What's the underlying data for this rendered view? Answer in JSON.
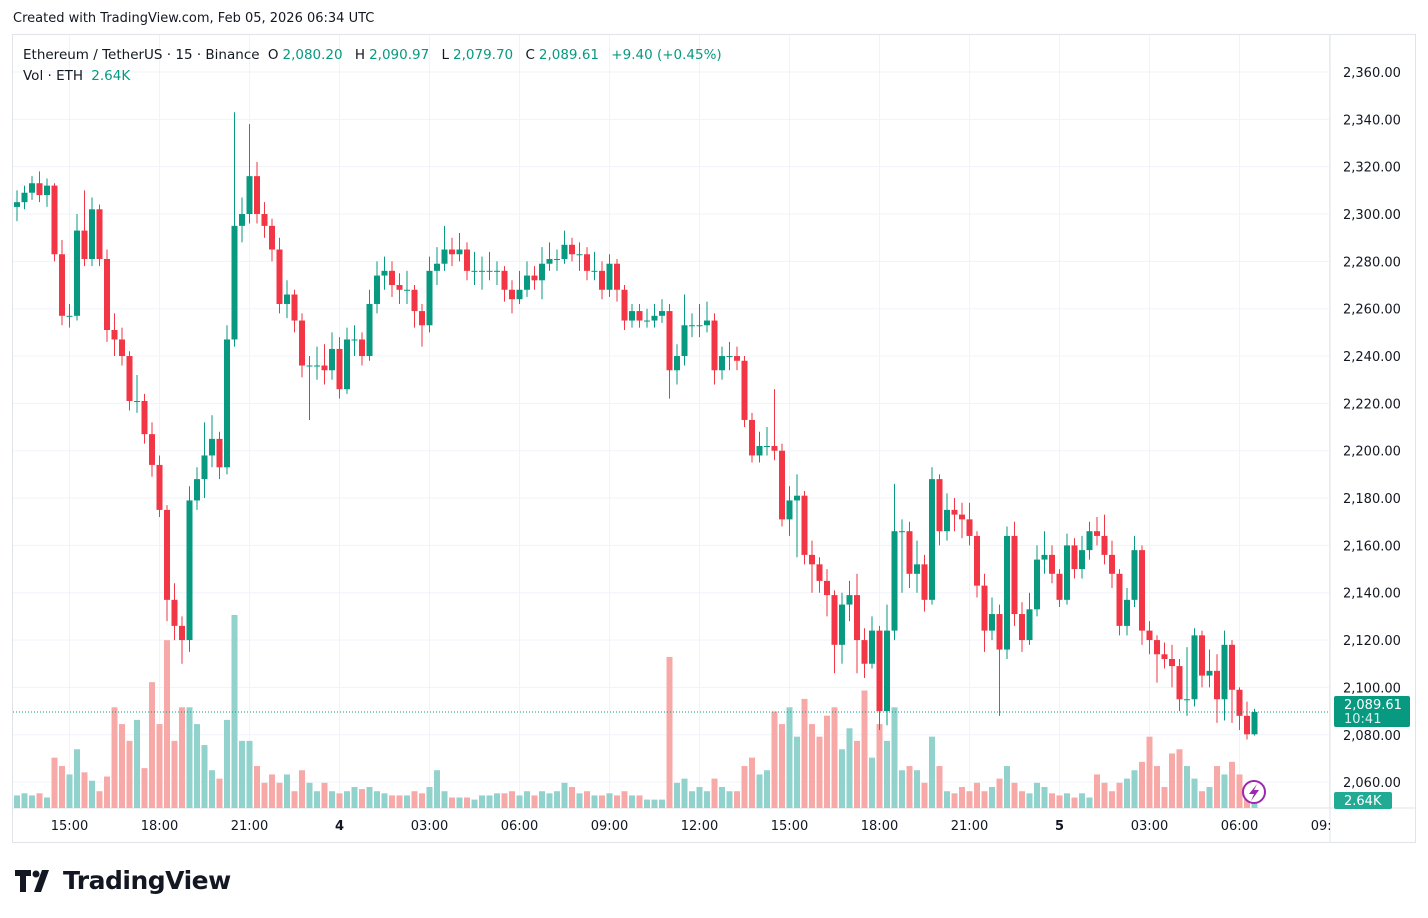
{
  "watermark": "Created with TradingView.com, Feb 05, 2026 06:34 UTC",
  "legend": {
    "symbol": "Ethereum / TetherUS · 15 · Binance",
    "o_label": "O",
    "o": "2,080.20",
    "h_label": "H",
    "h": "2,090.97",
    "l_label": "L",
    "l": "2,079.70",
    "c_label": "C",
    "c": "2,089.61",
    "change": "+9.40 (+0.45%)",
    "vol_label": "Vol · ETH",
    "vol": "2.64K"
  },
  "price_label": {
    "price": "2,089.61",
    "countdown": "10:41"
  },
  "volume_label": "2.64K",
  "logo": "TradingView",
  "colors": {
    "up": "#089981",
    "down": "#f23645",
    "vol_up": "#92d2cc",
    "vol_down": "#f7a9a7",
    "accent": "#9c27b0"
  },
  "chart_data": {
    "type": "candlestick",
    "title": "Ethereum / TetherUS · 15 · Binance",
    "interval": "15",
    "ylim": [
      2050,
      2372
    ],
    "grid": true,
    "price_ticks": [
      "2,060.00",
      "2,080.00",
      "2,100.00",
      "2,120.00",
      "2,140.00",
      "2,160.00",
      "2,180.00",
      "2,200.00",
      "2,220.00",
      "2,240.00",
      "2,260.00",
      "2,280.00",
      "2,300.00",
      "2,320.00",
      "2,340.00",
      "2,360.00"
    ],
    "price_tick_values": [
      2060,
      2080,
      2100,
      2120,
      2140,
      2160,
      2180,
      2200,
      2220,
      2240,
      2260,
      2280,
      2300,
      2320,
      2340,
      2360
    ],
    "time_ticks": [
      {
        "label": "15:00",
        "bar": 7
      },
      {
        "label": "18:00",
        "bar": 19
      },
      {
        "label": "21:00",
        "bar": 31
      },
      {
        "label": "4",
        "bar": 43
      },
      {
        "label": "03:00",
        "bar": 55
      },
      {
        "label": "06:00",
        "bar": 67
      },
      {
        "label": "09:00",
        "bar": 79
      },
      {
        "label": "12:00",
        "bar": 91
      },
      {
        "label": "15:00",
        "bar": 103
      },
      {
        "label": "18:00",
        "bar": 115
      },
      {
        "label": "21:00",
        "bar": 127
      },
      {
        "label": "5",
        "bar": 139
      },
      {
        "label": "03:00",
        "bar": 151
      },
      {
        "label": "06:00",
        "bar": 163
      },
      {
        "label": "09:00",
        "bar": 175
      }
    ],
    "candle_fields": [
      "open",
      "high",
      "low",
      "close",
      "volume_k"
    ],
    "candles": [
      [
        2303,
        2310,
        2297,
        2305,
        3
      ],
      [
        2305,
        2312,
        2302,
        2309,
        3.5
      ],
      [
        2309,
        2316,
        2306,
        2313,
        3
      ],
      [
        2313,
        2318,
        2305,
        2308,
        3.5
      ],
      [
        2308,
        2315,
        2303,
        2312,
        2.5
      ],
      [
        2312,
        2313,
        2280,
        2283,
        12
      ],
      [
        2283,
        2289,
        2253,
        2257,
        10
      ],
      [
        2257,
        2262,
        2252,
        2257,
        8
      ],
      [
        2257,
        2300,
        2255,
        2293,
        14
      ],
      [
        2293,
        2310,
        2278,
        2281,
        8.5
      ],
      [
        2281,
        2307,
        2278,
        2302,
        6.5
      ],
      [
        2302,
        2304,
        2278,
        2281,
        4
      ],
      [
        2281,
        2285,
        2246,
        2251,
        7.5
      ],
      [
        2251,
        2258,
        2240,
        2247,
        24
      ],
      [
        2247,
        2252,
        2236,
        2240,
        20
      ],
      [
        2240,
        2242,
        2217,
        2221,
        16
      ],
      [
        2221,
        2232,
        2216,
        2221,
        21
      ],
      [
        2221,
        2224,
        2203,
        2207,
        9.5
      ],
      [
        2207,
        2212,
        2189,
        2194,
        30
      ],
      [
        2194,
        2198,
        2172,
        2175,
        20
      ],
      [
        2175,
        2177,
        2128,
        2137,
        40
      ],
      [
        2137,
        2144,
        2120,
        2126,
        16
      ],
      [
        2126,
        2130,
        2110,
        2120,
        24
      ],
      [
        2120,
        2185,
        2115,
        2179,
        24
      ],
      [
        2179,
        2193,
        2175,
        2188,
        20
      ],
      [
        2188,
        2212,
        2180,
        2198,
        15
      ],
      [
        2198,
        2215,
        2193,
        2205,
        9
      ],
      [
        2205,
        2208,
        2188,
        2193,
        7
      ],
      [
        2193,
        2253,
        2190,
        2247,
        21
      ],
      [
        2247,
        2343,
        2244,
        2295,
        46
      ],
      [
        2295,
        2307,
        2288,
        2300,
        16
      ],
      [
        2300,
        2338,
        2296,
        2316,
        16
      ],
      [
        2316,
        2322,
        2296,
        2300,
        10
      ],
      [
        2300,
        2305,
        2290,
        2295,
        6
      ],
      [
        2295,
        2298,
        2280,
        2285,
        8
      ],
      [
        2285,
        2290,
        2258,
        2262,
        6
      ],
      [
        2262,
        2272,
        2256,
        2266,
        8
      ],
      [
        2266,
        2268,
        2250,
        2255,
        4
      ],
      [
        2255,
        2258,
        2231,
        2236,
        9
      ],
      [
        2236,
        2240,
        2213,
        2236,
        6
      ],
      [
        2236,
        2244,
        2230,
        2236,
        4
      ],
      [
        2236,
        2245,
        2228,
        2234,
        6
      ],
      [
        2234,
        2250,
        2230,
        2243,
        4
      ],
      [
        2243,
        2248,
        2222,
        2226,
        3.5
      ],
      [
        2226,
        2252,
        2224,
        2247,
        4
      ],
      [
        2247,
        2253,
        2240,
        2247,
        5
      ],
      [
        2247,
        2250,
        2236,
        2240,
        4.5
      ],
      [
        2240,
        2268,
        2238,
        2262,
        5
      ],
      [
        2262,
        2280,
        2258,
        2274,
        4
      ],
      [
        2274,
        2282,
        2268,
        2276,
        3.5
      ],
      [
        2276,
        2280,
        2265,
        2270,
        3
      ],
      [
        2270,
        2275,
        2262,
        2268,
        3
      ],
      [
        2268,
        2276,
        2262,
        2268,
        3
      ],
      [
        2268,
        2270,
        2252,
        2259,
        4
      ],
      [
        2259,
        2262,
        2244,
        2253,
        3.5
      ],
      [
        2253,
        2282,
        2250,
        2276,
        5
      ],
      [
        2276,
        2286,
        2270,
        2279,
        9
      ],
      [
        2279,
        2295,
        2276,
        2285,
        4
      ],
      [
        2285,
        2290,
        2278,
        2283,
        2.5
      ],
      [
        2283,
        2292,
        2280,
        2285,
        2.5
      ],
      [
        2285,
        2288,
        2272,
        2276,
        2.5
      ],
      [
        2276,
        2284,
        2270,
        2276,
        2
      ],
      [
        2276,
        2282,
        2268,
        2276,
        3
      ],
      [
        2276,
        2284,
        2272,
        2276,
        3
      ],
      [
        2276,
        2280,
        2270,
        2276,
        3.5
      ],
      [
        2276,
        2278,
        2263,
        2268,
        3.5
      ],
      [
        2268,
        2272,
        2258,
        2264,
        4
      ],
      [
        2264,
        2276,
        2262,
        2268,
        3
      ],
      [
        2268,
        2280,
        2265,
        2274,
        4
      ],
      [
        2274,
        2278,
        2268,
        2272,
        3
      ],
      [
        2272,
        2286,
        2264,
        2279,
        4
      ],
      [
        2279,
        2288,
        2276,
        2281,
        3.5
      ],
      [
        2281,
        2285,
        2276,
        2281,
        4
      ],
      [
        2281,
        2293,
        2279,
        2287,
        6
      ],
      [
        2287,
        2290,
        2280,
        2283,
        5
      ],
      [
        2283,
        2288,
        2276,
        2283,
        3.5
      ],
      [
        2283,
        2286,
        2272,
        2276,
        4
      ],
      [
        2276,
        2284,
        2272,
        2276,
        3
      ],
      [
        2276,
        2280,
        2264,
        2268,
        3
      ],
      [
        2268,
        2283,
        2265,
        2279,
        3.5
      ],
      [
        2279,
        2281,
        2263,
        2268,
        3
      ],
      [
        2268,
        2270,
        2251,
        2255,
        4
      ],
      [
        2255,
        2262,
        2252,
        2259,
        3
      ],
      [
        2259,
        2262,
        2252,
        2255,
        3
      ],
      [
        2255,
        2260,
        2252,
        2255,
        2
      ],
      [
        2255,
        2262,
        2252,
        2257,
        2
      ],
      [
        2257,
        2264,
        2254,
        2259,
        2
      ],
      [
        2259,
        2262,
        2222,
        2234,
        36
      ],
      [
        2234,
        2245,
        2228,
        2240,
        6
      ],
      [
        2240,
        2266,
        2236,
        2253,
        7
      ],
      [
        2253,
        2258,
        2248,
        2253,
        4
      ],
      [
        2253,
        2262,
        2248,
        2253,
        5
      ],
      [
        2253,
        2263,
        2250,
        2255,
        4
      ],
      [
        2255,
        2258,
        2228,
        2234,
        7
      ],
      [
        2234,
        2244,
        2230,
        2240,
        5
      ],
      [
        2240,
        2246,
        2234,
        2240,
        4
      ],
      [
        2240,
        2244,
        2234,
        2238,
        4
      ],
      [
        2238,
        2240,
        2210,
        2213,
        10
      ],
      [
        2213,
        2216,
        2195,
        2198,
        12
      ],
      [
        2198,
        2208,
        2195,
        2202,
        8
      ],
      [
        2202,
        2210,
        2198,
        2202,
        9
      ],
      [
        2202,
        2226,
        2196,
        2200,
        23
      ],
      [
        2200,
        2203,
        2168,
        2171,
        20
      ],
      [
        2171,
        2185,
        2164,
        2179,
        24
      ],
      [
        2179,
        2190,
        2155,
        2181,
        17
      ],
      [
        2181,
        2183,
        2152,
        2156,
        26
      ],
      [
        2156,
        2162,
        2140,
        2152,
        20
      ],
      [
        2152,
        2155,
        2140,
        2145,
        17
      ],
      [
        2145,
        2150,
        2130,
        2139,
        22
      ],
      [
        2139,
        2141,
        2106,
        2118,
        24
      ],
      [
        2118,
        2140,
        2110,
        2135,
        14
      ],
      [
        2135,
        2145,
        2128,
        2139,
        19
      ],
      [
        2139,
        2148,
        2106,
        2120,
        16
      ],
      [
        2120,
        2125,
        2104,
        2110,
        28
      ],
      [
        2110,
        2130,
        2108,
        2124,
        12
      ],
      [
        2124,
        2126,
        2082,
        2090,
        20
      ],
      [
        2090,
        2135,
        2084,
        2124,
        16
      ],
      [
        2124,
        2186,
        2120,
        2166,
        24
      ],
      [
        2166,
        2171,
        2140,
        2166,
        9
      ],
      [
        2166,
        2170,
        2142,
        2148,
        10
      ],
      [
        2148,
        2162,
        2140,
        2152,
        9
      ],
      [
        2152,
        2156,
        2132,
        2137,
        6
      ],
      [
        2137,
        2193,
        2135,
        2188,
        17
      ],
      [
        2188,
        2190,
        2160,
        2166,
        10
      ],
      [
        2166,
        2182,
        2162,
        2175,
        4
      ],
      [
        2175,
        2180,
        2166,
        2173,
        3.5
      ],
      [
        2173,
        2178,
        2163,
        2171,
        5
      ],
      [
        2171,
        2178,
        2160,
        2164,
        4
      ],
      [
        2164,
        2166,
        2138,
        2143,
        6
      ],
      [
        2143,
        2148,
        2115,
        2124,
        4
      ],
      [
        2124,
        2138,
        2120,
        2131,
        5
      ],
      [
        2131,
        2135,
        2088,
        2116,
        7
      ],
      [
        2116,
        2168,
        2112,
        2164,
        10
      ],
      [
        2164,
        2170,
        2126,
        2131,
        6
      ],
      [
        2131,
        2136,
        2115,
        2120,
        4
      ],
      [
        2120,
        2140,
        2118,
        2133,
        3.5
      ],
      [
        2133,
        2160,
        2130,
        2154,
        6
      ],
      [
        2154,
        2166,
        2148,
        2156,
        5
      ],
      [
        2156,
        2160,
        2144,
        2148,
        3.5
      ],
      [
        2148,
        2150,
        2134,
        2137,
        3
      ],
      [
        2137,
        2165,
        2135,
        2160,
        3.5
      ],
      [
        2160,
        2163,
        2146,
        2150,
        2.5
      ],
      [
        2150,
        2164,
        2146,
        2158,
        3.5
      ],
      [
        2158,
        2170,
        2154,
        2166,
        2.5
      ],
      [
        2166,
        2172,
        2160,
        2164,
        8
      ],
      [
        2164,
        2173,
        2152,
        2156,
        6
      ],
      [
        2156,
        2162,
        2142,
        2148,
        4
      ],
      [
        2148,
        2150,
        2122,
        2126,
        6
      ],
      [
        2126,
        2142,
        2122,
        2137,
        7
      ],
      [
        2137,
        2164,
        2134,
        2158,
        9
      ],
      [
        2158,
        2160,
        2118,
        2124,
        11
      ],
      [
        2124,
        2128,
        2114,
        2120,
        17
      ],
      [
        2120,
        2122,
        2102,
        2114,
        10
      ],
      [
        2114,
        2119,
        2108,
        2112,
        5
      ],
      [
        2112,
        2118,
        2100,
        2109,
        13
      ],
      [
        2109,
        2112,
        2090,
        2095,
        14
      ],
      [
        2095,
        2117,
        2088,
        2095,
        10
      ],
      [
        2095,
        2125,
        2092,
        2122,
        7
      ],
      [
        2122,
        2124,
        2100,
        2105,
        4
      ],
      [
        2105,
        2116,
        2100,
        2107,
        5
      ],
      [
        2107,
        2114,
        2085,
        2095,
        10
      ],
      [
        2095,
        2124,
        2086,
        2118,
        8
      ],
      [
        2118,
        2120,
        2085,
        2099,
        11
      ],
      [
        2099,
        2100,
        2082,
        2088,
        8
      ],
      [
        2088,
        2094,
        2078,
        2080.2,
        5
      ],
      [
        2080.2,
        2090.97,
        2079.7,
        2089.61,
        2.64
      ]
    ]
  }
}
